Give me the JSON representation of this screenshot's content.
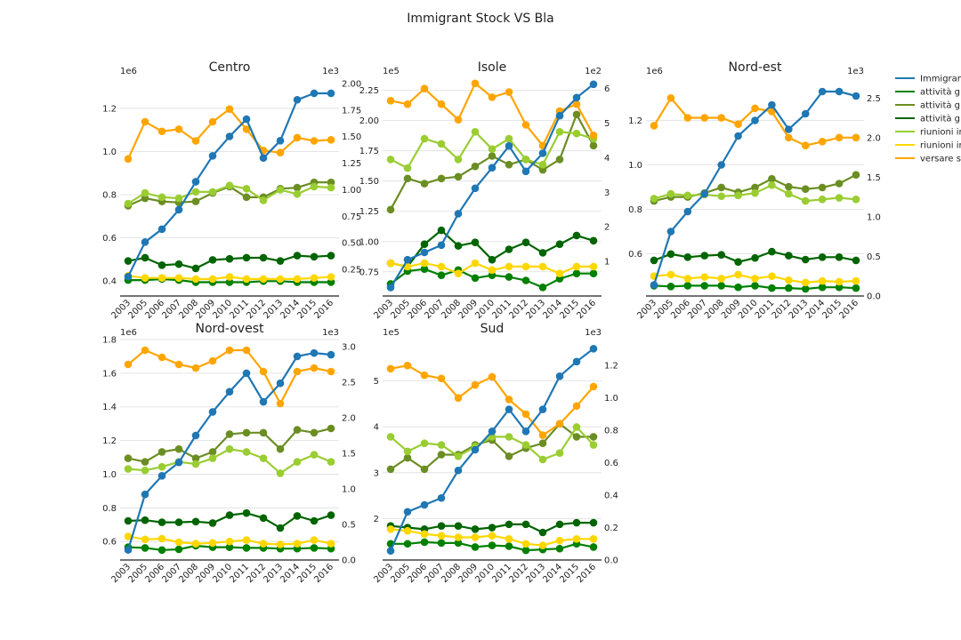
{
  "title": "Immigrant Stock VS Bla",
  "chart_data": {
    "type": "line",
    "title": "Immigrant Stock VS Bla",
    "x": [
      "2003",
      "2005",
      "2006",
      "2007",
      "2008",
      "2009",
      "2010",
      "2011",
      "2012",
      "2013",
      "2014",
      "2015",
      "2016"
    ],
    "legend": {
      "placement": "right",
      "entries": [
        {
          "name": "Immigrant",
          "color": "#1f77b4"
        },
        {
          "name": "attività g",
          "color": "#008000"
        },
        {
          "name": "attività g",
          "color": "#6b8e23"
        },
        {
          "name": "attività g",
          "color": "#006400"
        },
        {
          "name": "riunioni ir",
          "color": "#9acd32"
        },
        {
          "name": "riunioni ir",
          "color": "#ffd700"
        },
        {
          "name": "versare s",
          "color": "#ffa500"
        }
      ]
    },
    "panels": [
      {
        "title": "Centro",
        "left_multiplier": "1e6",
        "right_multiplier": "1e3",
        "left_ylim": [
          0.33,
          1.34
        ],
        "left_ticks": [
          "0.4",
          "0.6",
          "0.8",
          "1.0",
          "1.2"
        ],
        "right_ylim": [
          0.0,
          2.05
        ],
        "right_ticks": [
          "0.25",
          "0.50",
          "0.75",
          "1.00",
          "1.25",
          "1.50",
          "1.75",
          "2.00"
        ],
        "grid": true,
        "immigrant_stock": [
          0.42,
          0.58,
          0.64,
          0.73,
          0.86,
          0.98,
          1.07,
          1.15,
          0.97,
          1.05,
          1.24,
          1.27,
          1.27
        ],
        "series": [
          {
            "legend_index": 1,
            "values": [
              0.15,
              0.15,
              0.16,
              0.15,
              0.13,
              0.13,
              0.13,
              0.13,
              0.14,
              0.14,
              0.13,
              0.13,
              0.13
            ]
          },
          {
            "legend_index": 2,
            "values": [
              0.85,
              0.92,
              0.89,
              0.88,
              0.89,
              0.97,
              1.03,
              0.93,
              0.93,
              1.01,
              1.02,
              1.07,
              1.07
            ]
          },
          {
            "legend_index": 3,
            "values": [
              0.33,
              0.36,
              0.29,
              0.3,
              0.26,
              0.34,
              0.35,
              0.36,
              0.36,
              0.33,
              0.38,
              0.37,
              0.38
            ]
          },
          {
            "legend_index": 4,
            "values": [
              0.87,
              0.97,
              0.93,
              0.92,
              0.98,
              0.98,
              1.04,
              1.01,
              0.9,
              1.0,
              0.96,
              1.03,
              1.02
            ]
          },
          {
            "legend_index": 5,
            "values": [
              0.19,
              0.17,
              0.17,
              0.17,
              0.16,
              0.16,
              0.18,
              0.16,
              0.16,
              0.16,
              0.16,
              0.17,
              0.18
            ]
          },
          {
            "legend_index": 6,
            "values": [
              1.29,
              1.64,
              1.55,
              1.57,
              1.46,
              1.64,
              1.76,
              1.57,
              1.37,
              1.35,
              1.49,
              1.46,
              1.47
            ]
          }
        ]
      },
      {
        "title": "Isole",
        "left_multiplier": "1e5",
        "right_multiplier": "1e2",
        "left_ylim": [
          0.55,
          2.35
        ],
        "left_ticks": [
          "0.75",
          "1.00",
          "1.25",
          "1.50",
          "1.75",
          "2.00",
          "2.25"
        ],
        "right_ylim": [
          0.0,
          6.3
        ],
        "right_ticks": [
          "1",
          "2",
          "3",
          "4",
          "5",
          "6"
        ],
        "grid": true,
        "immigrant_stock": [
          0.62,
          0.85,
          0.91,
          0.97,
          1.23,
          1.44,
          1.61,
          1.79,
          1.58,
          1.73,
          2.04,
          2.19,
          2.3
        ],
        "series": [
          {
            "legend_index": 1,
            "values": [
              0.35,
              0.72,
              0.78,
              0.6,
              0.75,
              0.52,
              0.6,
              0.55,
              0.45,
              0.25,
              0.5,
              0.65,
              0.65
            ]
          },
          {
            "legend_index": 2,
            "values": [
              2.5,
              3.4,
              3.25,
              3.4,
              3.45,
              3.75,
              4.05,
              3.8,
              3.95,
              3.65,
              3.95,
              5.25,
              4.35
            ]
          },
          {
            "legend_index": 3,
            "values": [
              0.95,
              0.85,
              1.5,
              1.9,
              1.45,
              1.55,
              1.05,
              1.35,
              1.55,
              1.25,
              1.5,
              1.75,
              1.6
            ]
          },
          {
            "legend_index": 4,
            "values": [
              3.95,
              3.7,
              4.55,
              4.4,
              3.95,
              4.75,
              4.25,
              4.55,
              3.95,
              3.8,
              4.75,
              4.7,
              4.55
            ]
          },
          {
            "legend_index": 5,
            "values": [
              0.95,
              0.85,
              0.95,
              0.85,
              0.65,
              0.95,
              0.75,
              0.85,
              0.85,
              0.85,
              0.65,
              0.85,
              0.85
            ]
          },
          {
            "legend_index": 6,
            "values": [
              5.65,
              5.55,
              6.0,
              5.55,
              5.1,
              6.15,
              5.75,
              5.9,
              4.95,
              4.35,
              5.35,
              5.55,
              4.65
            ]
          }
        ]
      },
      {
        "title": "Nord-est",
        "left_multiplier": "1e6",
        "right_multiplier": "1e3",
        "left_ylim": [
          0.41,
          1.39
        ],
        "left_ticks": [
          "0.6",
          "0.8",
          "1.0",
          "1.2"
        ],
        "right_ylim": [
          0.0,
          2.75
        ],
        "right_ticks": [
          "0.0",
          "0.5",
          "1.0",
          "1.5",
          "2.0",
          "2.5"
        ],
        "grid": true,
        "immigrant_stock": [
          0.46,
          0.7,
          0.79,
          0.87,
          1.0,
          1.13,
          1.2,
          1.27,
          1.16,
          1.23,
          1.33,
          1.33,
          1.31
        ],
        "series": [
          {
            "legend_index": 1,
            "values": [
              0.13,
              0.12,
              0.13,
              0.13,
              0.13,
              0.11,
              0.13,
              0.1,
              0.1,
              0.09,
              0.11,
              0.11,
              0.1
            ]
          },
          {
            "legend_index": 2,
            "values": [
              1.2,
              1.25,
              1.25,
              1.3,
              1.37,
              1.31,
              1.37,
              1.48,
              1.38,
              1.35,
              1.37,
              1.42,
              1.53
            ]
          },
          {
            "legend_index": 3,
            "values": [
              0.45,
              0.53,
              0.49,
              0.51,
              0.52,
              0.43,
              0.48,
              0.56,
              0.51,
              0.46,
              0.49,
              0.49,
              0.45
            ]
          },
          {
            "legend_index": 4,
            "values": [
              1.23,
              1.29,
              1.27,
              1.28,
              1.26,
              1.27,
              1.3,
              1.4,
              1.29,
              1.2,
              1.22,
              1.24,
              1.22
            ]
          },
          {
            "legend_index": 5,
            "values": [
              0.25,
              0.27,
              0.22,
              0.24,
              0.22,
              0.27,
              0.22,
              0.25,
              0.2,
              0.17,
              0.19,
              0.18,
              0.19
            ]
          },
          {
            "legend_index": 6,
            "values": [
              2.15,
              2.5,
              2.25,
              2.25,
              2.25,
              2.17,
              2.37,
              2.33,
              2.0,
              1.9,
              1.95,
              2.0,
              2.0
            ]
          }
        ]
      },
      {
        "title": "Nord-ovest",
        "left_multiplier": "1e6",
        "right_multiplier": "1e3",
        "left_ylim": [
          0.49,
          1.8
        ],
        "left_ticks": [
          "0.6",
          "0.8",
          "1.0",
          "1.2",
          "1.4",
          "1.6",
          "1.8"
        ],
        "right_ylim": [
          0.0,
          3.1
        ],
        "right_ticks": [
          "0.0",
          "0.5",
          "1.0",
          "1.5",
          "2.0",
          "2.5",
          "3.0"
        ],
        "grid": true,
        "immigrant_stock": [
          0.55,
          0.88,
          0.99,
          1.07,
          1.23,
          1.37,
          1.49,
          1.6,
          1.43,
          1.54,
          1.7,
          1.72,
          1.71
        ],
        "series": [
          {
            "legend_index": 1,
            "values": [
              0.18,
              0.17,
              0.14,
              0.15,
              0.2,
              0.18,
              0.18,
              0.17,
              0.17,
              0.16,
              0.16,
              0.17,
              0.16
            ]
          },
          {
            "legend_index": 2,
            "values": [
              1.43,
              1.38,
              1.52,
              1.56,
              1.43,
              1.52,
              1.77,
              1.79,
              1.79,
              1.56,
              1.83,
              1.79,
              1.85
            ]
          },
          {
            "legend_index": 3,
            "values": [
              0.55,
              0.56,
              0.53,
              0.53,
              0.54,
              0.52,
              0.63,
              0.66,
              0.59,
              0.45,
              0.62,
              0.55,
              0.63
            ]
          },
          {
            "legend_index": 4,
            "values": [
              1.28,
              1.26,
              1.31,
              1.38,
              1.35,
              1.43,
              1.56,
              1.52,
              1.43,
              1.22,
              1.38,
              1.48,
              1.38
            ]
          },
          {
            "legend_index": 5,
            "values": [
              0.33,
              0.29,
              0.3,
              0.25,
              0.23,
              0.24,
              0.26,
              0.28,
              0.23,
              0.22,
              0.23,
              0.28,
              0.23
            ]
          },
          {
            "legend_index": 6,
            "values": [
              2.75,
              2.95,
              2.85,
              2.75,
              2.7,
              2.8,
              2.95,
              2.95,
              2.65,
              2.2,
              2.65,
              2.7,
              2.65
            ]
          }
        ]
      },
      {
        "title": "Sud",
        "left_multiplier": "1e5",
        "right_multiplier": "1e3",
        "left_ylim": [
          1.1,
          5.9
        ],
        "left_ticks": [
          "2",
          "3",
          "4",
          "5"
        ],
        "right_ylim": [
          0.0,
          1.36
        ],
        "right_ticks": [
          "0.0",
          "0.2",
          "0.4",
          "0.6",
          "0.8",
          "1.0",
          "1.2"
        ],
        "grid": true,
        "immigrant_stock": [
          1.3,
          2.15,
          2.3,
          2.45,
          3.05,
          3.5,
          3.9,
          4.38,
          3.9,
          4.38,
          5.1,
          5.42,
          5.7
        ],
        "series": [
          {
            "legend_index": 1,
            "values": [
              0.1,
              0.1,
              0.11,
              0.105,
              0.105,
              0.08,
              0.09,
              0.085,
              0.06,
              0.065,
              0.07,
              0.1,
              0.08
            ]
          },
          {
            "legend_index": 2,
            "values": [
              0.56,
              0.63,
              0.56,
              0.65,
              0.65,
              0.71,
              0.74,
              0.64,
              0.69,
              0.72,
              0.84,
              0.76,
              0.76
            ]
          },
          {
            "legend_index": 3,
            "values": [
              0.21,
              0.2,
              0.19,
              0.21,
              0.21,
              0.19,
              0.2,
              0.22,
              0.22,
              0.17,
              0.22,
              0.23,
              0.23
            ]
          },
          {
            "legend_index": 4,
            "values": [
              0.76,
              0.67,
              0.72,
              0.71,
              0.64,
              0.7,
              0.76,
              0.76,
              0.71,
              0.62,
              0.66,
              0.82,
              0.71
            ]
          },
          {
            "legend_index": 5,
            "values": [
              0.19,
              0.18,
              0.16,
              0.15,
              0.14,
              0.14,
              0.15,
              0.13,
              0.1,
              0.09,
              0.12,
              0.13,
              0.13
            ]
          },
          {
            "legend_index": 6,
            "values": [
              1.18,
              1.2,
              1.14,
              1.12,
              1.0,
              1.08,
              1.13,
              0.99,
              0.9,
              0.77,
              0.84,
              0.95,
              1.07
            ]
          }
        ]
      }
    ]
  }
}
